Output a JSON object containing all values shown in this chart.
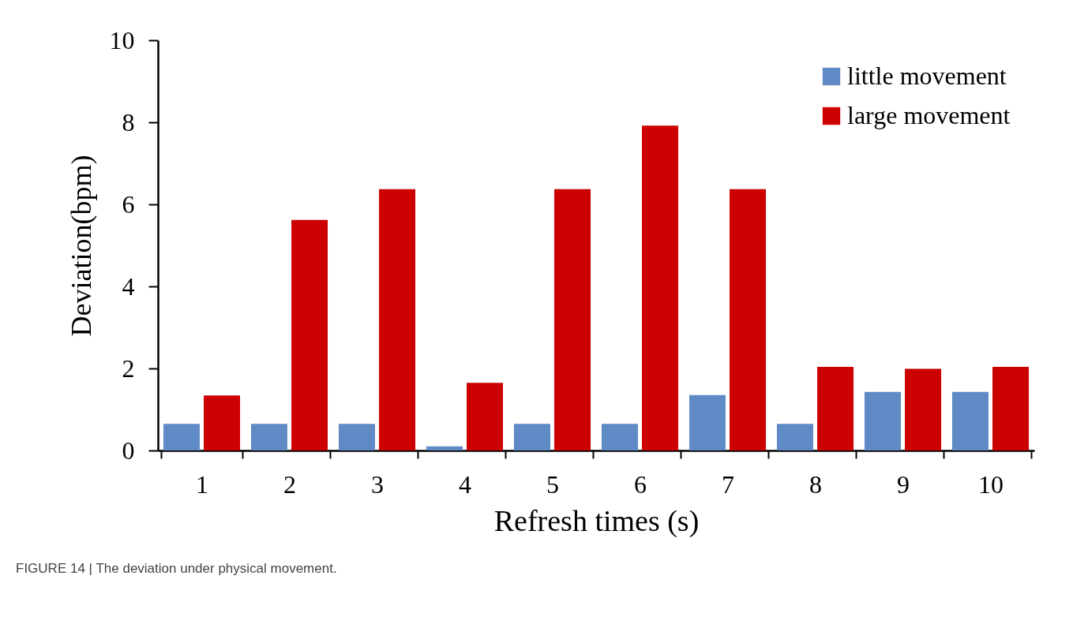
{
  "chart_data": {
    "type": "bar",
    "categories": [
      "1",
      "2",
      "3",
      "4",
      "5",
      "6",
      "7",
      "8",
      "9",
      "10"
    ],
    "series": [
      {
        "name": "little movement",
        "color": "#5f8ac5",
        "values": [
          0.65,
          0.65,
          0.65,
          0.1,
          0.65,
          0.65,
          1.35,
          0.65,
          1.43,
          1.43
        ]
      },
      {
        "name": "large movement",
        "color": "#cc0000",
        "values": [
          1.34,
          5.62,
          6.37,
          1.65,
          6.37,
          7.92,
          6.37,
          2.04,
          1.99,
          2.04
        ]
      }
    ],
    "xlabel": "Refresh times (s)",
    "ylabel": "Deviation(bpm)",
    "ylim": [
      0,
      10
    ],
    "yticks": [
      0,
      2,
      4,
      6,
      8,
      10
    ],
    "legend": "top right",
    "grid": false,
    "annotations": [
      "FIGURE 14 | The deviation under physical movement."
    ]
  }
}
